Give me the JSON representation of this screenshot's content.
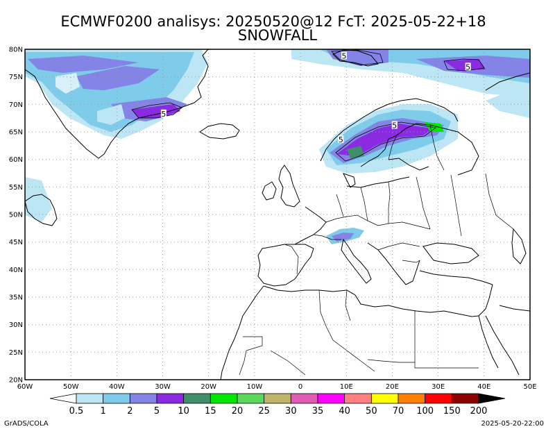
{
  "title": {
    "line1": "ECMWF0200 analisys: 20250520@12 FcT: 2025-05-22+18",
    "line2": "SNOWFALL"
  },
  "axes": {
    "lat_labels": [
      "80N",
      "75N",
      "70N",
      "65N",
      "60N",
      "55N",
      "50N",
      "45N",
      "40N",
      "35N",
      "30N",
      "25N",
      "20N"
    ],
    "lon_labels": [
      "60W",
      "50W",
      "40W",
      "30W",
      "20W",
      "10W",
      "0",
      "10E",
      "20E",
      "30E",
      "40E",
      "50E"
    ],
    "lon_range": [
      -60,
      50
    ],
    "lat_range": [
      20,
      80
    ],
    "grid": "dotted"
  },
  "colorbar": {
    "labels": [
      "0.5",
      "1",
      "2",
      "5",
      "10",
      "15",
      "20",
      "25",
      "30",
      "35",
      "40",
      "50",
      "70",
      "100",
      "150",
      "200"
    ],
    "colors": [
      "#ffffff",
      "#bde6f4",
      "#7ecbea",
      "#8484e6",
      "#8a2be2",
      "#3e8e6a",
      "#00e600",
      "#5bd75b",
      "#bfb46a",
      "#e05bb4",
      "#ff00ff",
      "#ff8080",
      "#ffff00",
      "#ff8000",
      "#ff0000",
      "#8b0000",
      "#000000"
    ]
  },
  "contour_labels": [
    {
      "text": "5",
      "lon": 9.5,
      "lat": 78.8
    },
    {
      "text": "5",
      "lon": 36.5,
      "lat": 76.8
    },
    {
      "text": "5",
      "lon": -29.8,
      "lat": 68.3
    },
    {
      "text": "5",
      "lon": 20.5,
      "lat": 66.2
    },
    {
      "text": "5",
      "lon": 8.8,
      "lat": 63.6
    }
  ],
  "footer": {
    "left": "GrADS/COLA",
    "right": "2025-05-20-22:00"
  }
}
